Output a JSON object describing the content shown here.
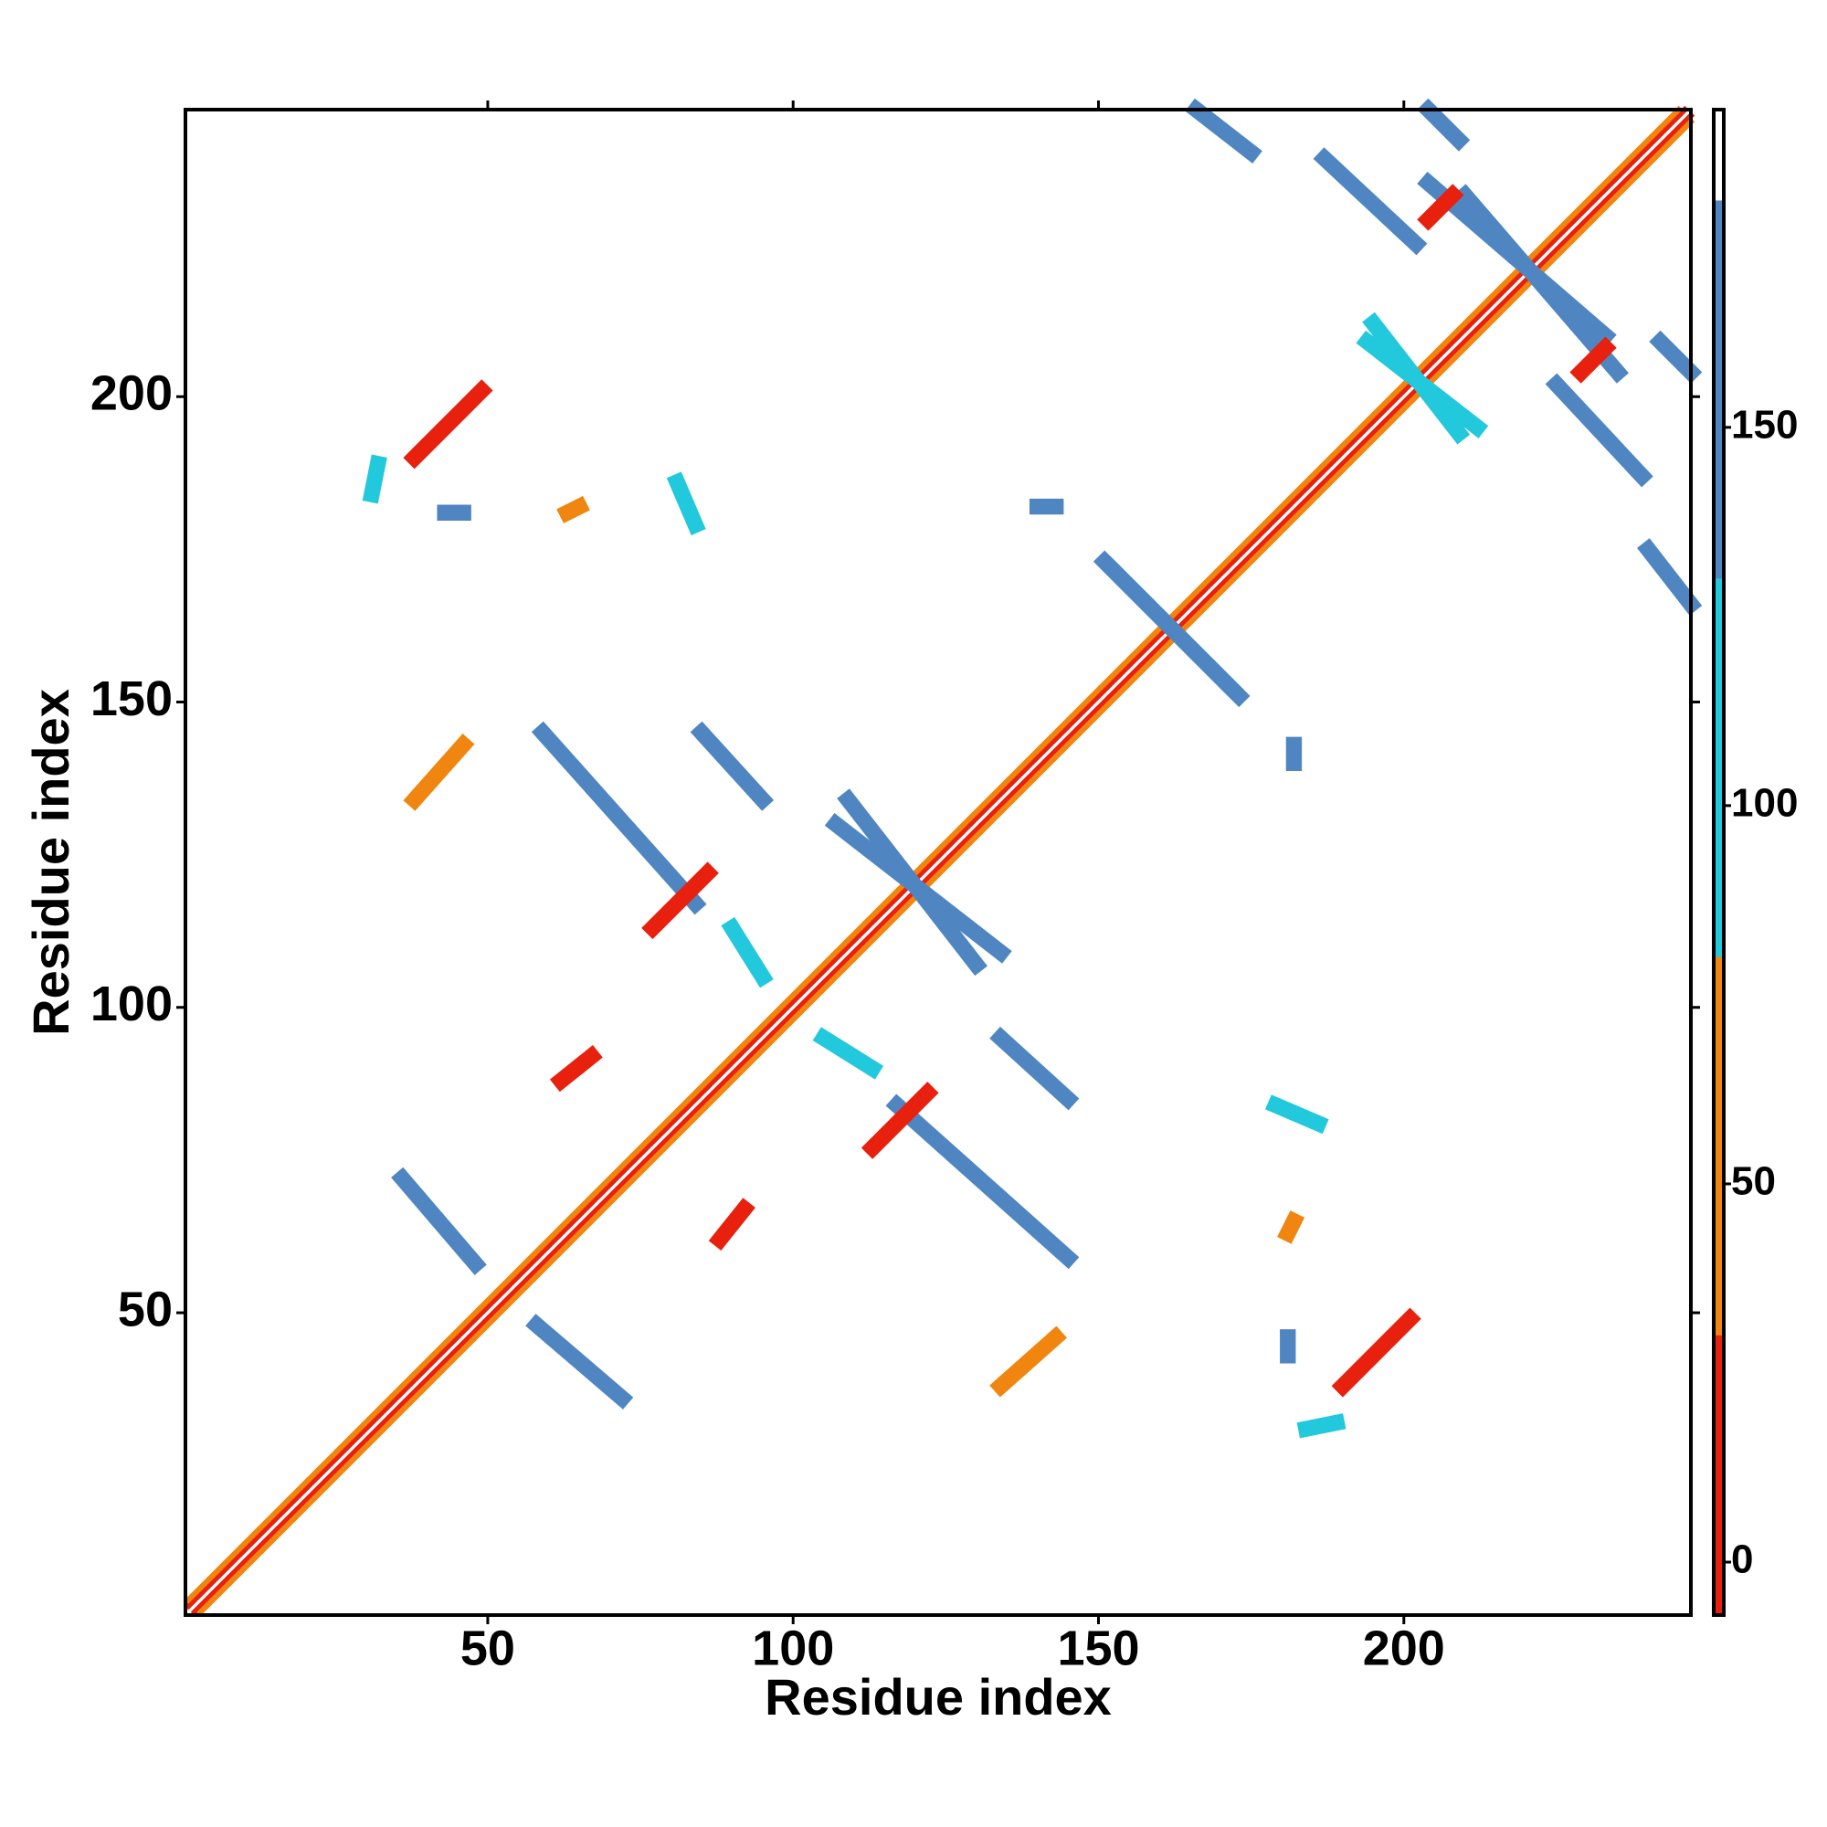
{
  "chart_data": {
    "type": "contact-map",
    "xlabel": "Residue index",
    "ylabel": "Residue index",
    "xlim": [
      0.5,
      247
    ],
    "ylim": [
      0.5,
      247
    ],
    "xticks": [
      50,
      100,
      150,
      200
    ],
    "yticks": [
      50,
      100,
      150,
      200
    ],
    "symmetric": true,
    "colorbar": {
      "lim": [
        -7,
        192
      ],
      "ticks": [
        0,
        50,
        100,
        150
      ],
      "bands": [
        {
          "from": -7,
          "to": 30,
          "color": "#e8200e"
        },
        {
          "from": 30,
          "to": 80,
          "color": "#f0860f"
        },
        {
          "from": 80,
          "to": 130,
          "color": "#22c8dc"
        },
        {
          "from": 130,
          "to": 180,
          "color": "#4f86c2"
        },
        {
          "from": 180,
          "to": 192,
          "color": "#ffffff"
        }
      ]
    },
    "contacts": [
      {
        "x": [
          2,
          247
        ],
        "y": [
          1,
          246
        ],
        "value": 10
      },
      {
        "x": [
          3,
          247
        ],
        "y": [
          1,
          245
        ],
        "value": 50
      },
      {
        "x": [
          58,
          72
        ],
        "y": [
          48,
          36
        ],
        "value": 155
      },
      {
        "x": [
          117,
          145
        ],
        "y": [
          84,
          59
        ],
        "value": 155
      },
      {
        "x": [
          134,
          145
        ],
        "y": [
          95,
          85
        ],
        "value": 155
      },
      {
        "x": [
          105,
          113
        ],
        "y": [
          95,
          90
        ],
        "value": 110
      },
      {
        "x": [
          190,
          201
        ],
        "y": [
          38,
          49
        ],
        "value": 10
      },
      {
        "x": [
          134,
          143
        ],
        "y": [
          38,
          46
        ],
        "value": 50
      },
      {
        "x": [
          184,
          189
        ],
        "y": [
          31,
          32
        ],
        "value": 110
      },
      {
        "x": [
          181,
          181
        ],
        "y": [
          43,
          46
        ],
        "value": 155
      },
      {
        "x": [
          181,
          182
        ],
        "y": [
          63,
          65
        ],
        "value": 50
      },
      {
        "x": [
          179,
          186
        ],
        "y": [
          84,
          81
        ],
        "value": 110
      },
      {
        "x": [
          182,
          182
        ],
        "y": [
          140,
          143
        ],
        "value": 155
      },
      {
        "x": [
          151,
          172
        ],
        "y": [
          173,
          152
        ],
        "value": 155
      },
      {
        "x": [
          107,
          134
        ],
        "y": [
          130,
          109
        ],
        "value": 155
      },
      {
        "x": [
          204,
          233
        ],
        "y": [
          235,
          210
        ],
        "value": 155
      },
      {
        "x": [
          225,
          239
        ],
        "y": [
          202,
          187
        ],
        "value": 155
      },
      {
        "x": [
          247,
          240
        ],
        "y": [
          166,
          175
        ],
        "value": 155
      },
      {
        "x": [
          247,
          242
        ],
        "y": [
          204,
          209
        ],
        "value": 155
      },
      {
        "x": [
          229,
          233
        ],
        "y": [
          204,
          208
        ],
        "value": 10
      },
      {
        "x": [
          195,
          209
        ],
        "y": [
          212,
          194
        ],
        "value": 110
      },
      {
        "x": [
          113,
          122
        ],
        "y": [
          77,
          86
        ],
        "value": 10
      },
      {
        "x": [
          88,
          92
        ],
        "y": [
          62,
          67
        ],
        "value": 10
      }
    ]
  }
}
